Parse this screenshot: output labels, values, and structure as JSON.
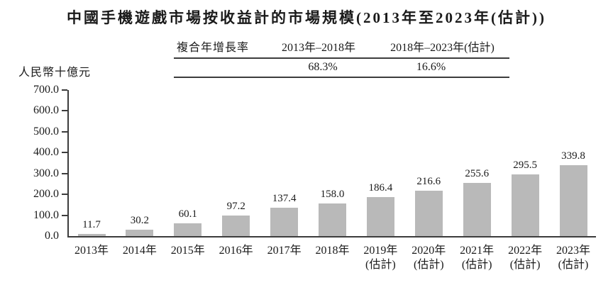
{
  "title": "中國手機遊戲市場按收益計的市場規模(2013年至2023年(估計))",
  "cagr_table": {
    "row_label": "複合年增長率",
    "period1_label": "2013年–2018年",
    "period2_label": "2018年–2023年(估計)",
    "period1_value": "68.3%",
    "period2_value": "16.6%"
  },
  "y_axis_unit": "人民幣十億元",
  "chart_data": {
    "type": "bar",
    "title": "中國手機遊戲市場按收益計的市場規模(2013年至2023年(估計))",
    "xlabel": "",
    "ylabel": "人民幣十億元",
    "ylim": [
      0,
      700
    ],
    "ytick_step": 100,
    "grid": false,
    "legend": "none",
    "bar_color": "#b9b9b9",
    "axis_color": "#3c3c3c",
    "categories": [
      {
        "year": "2013年",
        "note": ""
      },
      {
        "year": "2014年",
        "note": ""
      },
      {
        "year": "2015年",
        "note": ""
      },
      {
        "year": "2016年",
        "note": ""
      },
      {
        "year": "2017年",
        "note": ""
      },
      {
        "year": "2018年",
        "note": ""
      },
      {
        "year": "2019年",
        "note": "(估計)"
      },
      {
        "year": "2020年",
        "note": "(估計)"
      },
      {
        "year": "2021年",
        "note": "(估計)"
      },
      {
        "year": "2022年",
        "note": "(估計)"
      },
      {
        "year": "2023年",
        "note": "(估計)"
      }
    ],
    "values": [
      11.7,
      30.2,
      60.1,
      97.2,
      137.4,
      158.0,
      186.4,
      216.6,
      255.6,
      295.5,
      339.8
    ]
  }
}
